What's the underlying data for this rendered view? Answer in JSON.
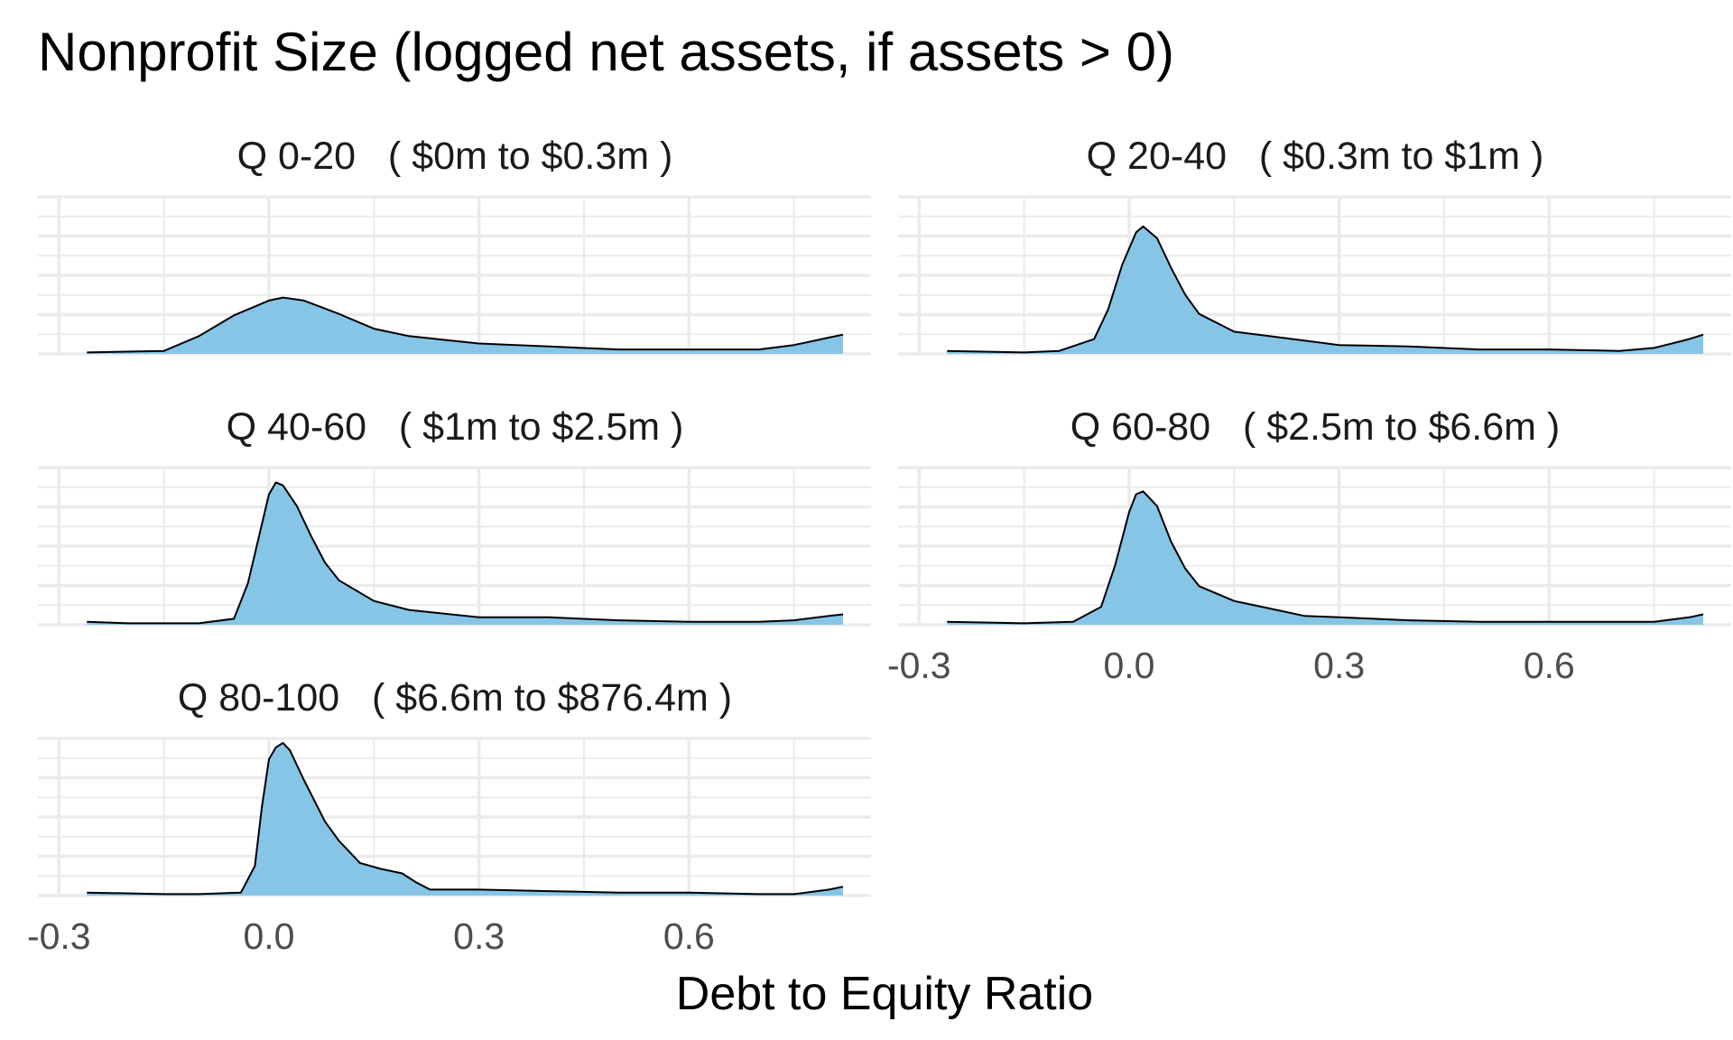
{
  "chart_data": {
    "type": "area",
    "title": "Nonprofit Size (logged net assets, if assets > 0)",
    "xlabel": "Debt to Equity Ratio",
    "ylabel": "",
    "xlim": [
      -0.33,
      0.86
    ],
    "x_ticks": [
      -0.3,
      0.0,
      0.3,
      0.6
    ],
    "x_tick_labels": [
      "-0.3",
      "0.0",
      "0.3",
      "0.6"
    ],
    "grid": true,
    "fill_color": "#87C5E7",
    "line_color": "#000000",
    "grid_color": "#EBEBEB",
    "facets": [
      {
        "label": "Q 0-20   ( $0m to $0.3m )",
        "x": [
          -0.26,
          -0.15,
          -0.1,
          -0.05,
          0.0,
          0.02,
          0.05,
          0.1,
          0.15,
          0.2,
          0.3,
          0.4,
          0.5,
          0.6,
          0.7,
          0.75,
          0.8,
          0.82
        ],
        "density": [
          0.01,
          0.02,
          0.12,
          0.26,
          0.36,
          0.38,
          0.36,
          0.27,
          0.17,
          0.12,
          0.07,
          0.05,
          0.03,
          0.03,
          0.03,
          0.06,
          0.11,
          0.13
        ]
      },
      {
        "label": "Q 20-40   ( $0.3m to $1m )",
        "x": [
          -0.26,
          -0.15,
          -0.1,
          -0.05,
          -0.03,
          -0.01,
          0.01,
          0.02,
          0.04,
          0.06,
          0.08,
          0.1,
          0.15,
          0.2,
          0.3,
          0.4,
          0.5,
          0.6,
          0.7,
          0.75,
          0.8,
          0.82
        ],
        "density": [
          0.02,
          0.01,
          0.02,
          0.1,
          0.3,
          0.6,
          0.82,
          0.86,
          0.78,
          0.58,
          0.4,
          0.27,
          0.15,
          0.12,
          0.06,
          0.05,
          0.03,
          0.03,
          0.02,
          0.04,
          0.1,
          0.13
        ]
      },
      {
        "label": "Q 40-60   ( $1m to $2.5m )",
        "x": [
          -0.26,
          -0.2,
          -0.1,
          -0.05,
          -0.03,
          -0.01,
          0.0,
          0.01,
          0.02,
          0.04,
          0.06,
          0.08,
          0.1,
          0.15,
          0.2,
          0.3,
          0.4,
          0.5,
          0.6,
          0.7,
          0.75,
          0.8,
          0.82
        ],
        "density": [
          0.02,
          0.01,
          0.01,
          0.04,
          0.28,
          0.68,
          0.88,
          0.96,
          0.94,
          0.8,
          0.6,
          0.42,
          0.3,
          0.16,
          0.1,
          0.05,
          0.05,
          0.03,
          0.02,
          0.02,
          0.03,
          0.06,
          0.07
        ]
      },
      {
        "label": "Q 60-80   ( $2.5m to $6.6m )",
        "x": [
          -0.26,
          -0.15,
          -0.08,
          -0.04,
          -0.02,
          0.0,
          0.01,
          0.02,
          0.04,
          0.06,
          0.08,
          0.1,
          0.15,
          0.2,
          0.25,
          0.3,
          0.4,
          0.5,
          0.6,
          0.7,
          0.75,
          0.8,
          0.82
        ],
        "density": [
          0.02,
          0.01,
          0.02,
          0.12,
          0.4,
          0.76,
          0.88,
          0.9,
          0.8,
          0.56,
          0.38,
          0.26,
          0.16,
          0.11,
          0.06,
          0.05,
          0.03,
          0.02,
          0.02,
          0.02,
          0.02,
          0.05,
          0.07
        ]
      },
      {
        "label": "Q 80-100   ( $6.6m to $876.4m )",
        "x": [
          -0.26,
          -0.15,
          -0.1,
          -0.04,
          -0.02,
          -0.01,
          0.0,
          0.01,
          0.02,
          0.03,
          0.05,
          0.08,
          0.1,
          0.13,
          0.16,
          0.19,
          0.21,
          0.23,
          0.3,
          0.4,
          0.5,
          0.6,
          0.7,
          0.75,
          0.8,
          0.82
        ],
        "density": [
          0.02,
          0.01,
          0.01,
          0.02,
          0.2,
          0.6,
          0.92,
          1.0,
          1.03,
          0.98,
          0.78,
          0.5,
          0.37,
          0.22,
          0.18,
          0.15,
          0.09,
          0.04,
          0.04,
          0.03,
          0.02,
          0.02,
          0.01,
          0.01,
          0.04,
          0.06
        ]
      }
    ]
  }
}
